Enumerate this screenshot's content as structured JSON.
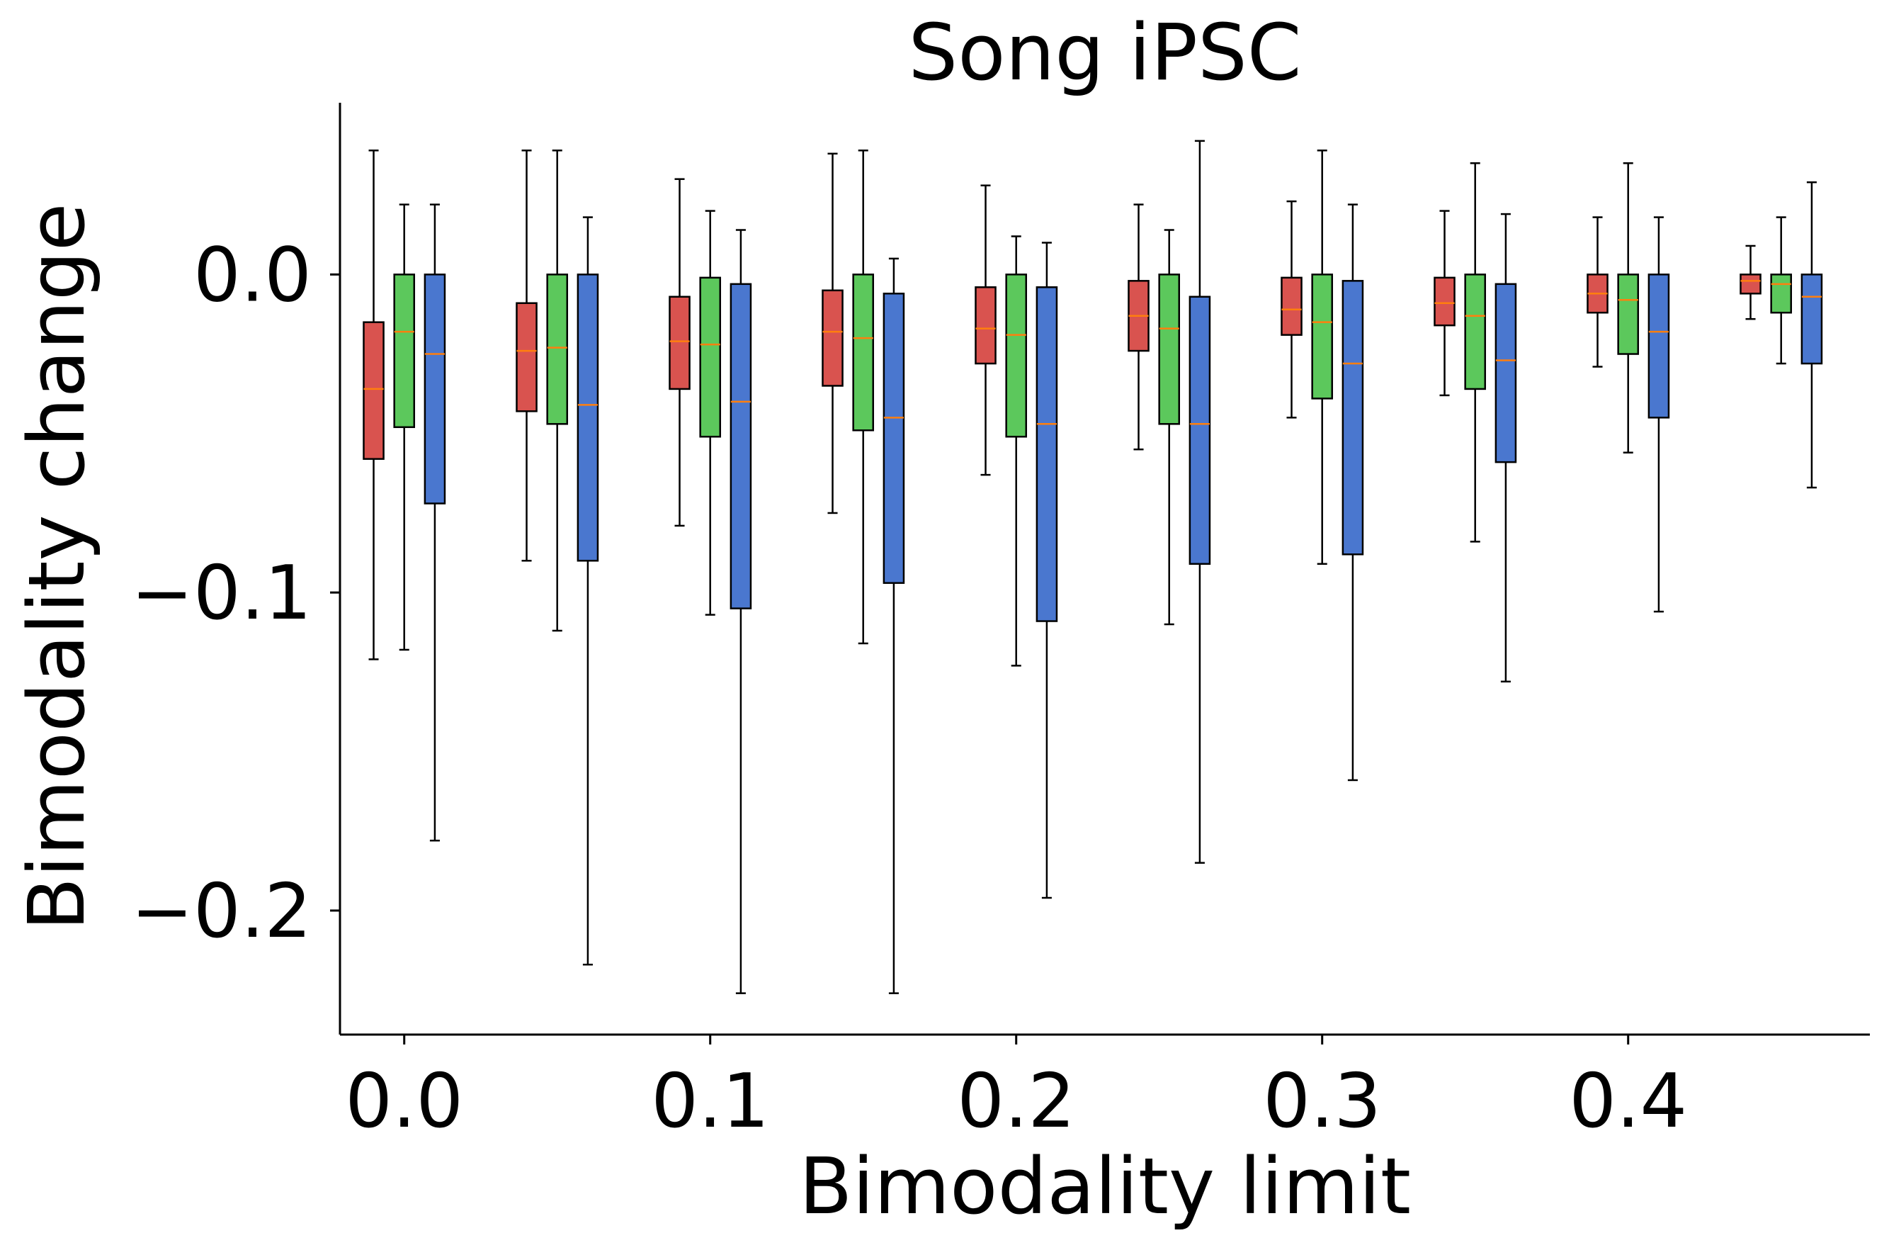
{
  "chart_data": {
    "type": "box",
    "title": "Song iPSC",
    "xlabel": "Bimodality limit",
    "ylabel": "Bimodality change",
    "xlim": [
      -0.021,
      0.479
    ],
    "ylim": [
      -0.239,
      0.054
    ],
    "xticks": [
      0.0,
      0.1,
      0.2,
      0.3,
      0.4
    ],
    "xtick_labels": [
      "0.0",
      "0.1",
      "0.2",
      "0.3",
      "0.4"
    ],
    "yticks": [
      0.0,
      -0.1,
      -0.2
    ],
    "ytick_labels": [
      "0.0",
      "−0.1",
      "−0.2"
    ],
    "grid": false,
    "median_color": "#ff7f0e",
    "series": [
      {
        "color": "#d9534f",
        "offset": -0.01,
        "boxes": [
          {
            "x": 0.0,
            "whislo": -0.121,
            "q1": -0.058,
            "med": -0.036,
            "q3": -0.015,
            "whishi": 0.039
          },
          {
            "x": 0.05,
            "whislo": -0.09,
            "q1": -0.043,
            "med": -0.024,
            "q3": -0.009,
            "whishi": 0.039
          },
          {
            "x": 0.1,
            "whislo": -0.079,
            "q1": -0.036,
            "med": -0.021,
            "q3": -0.007,
            "whishi": 0.03
          },
          {
            "x": 0.15,
            "whislo": -0.075,
            "q1": -0.035,
            "med": -0.018,
            "q3": -0.005,
            "whishi": 0.038
          },
          {
            "x": 0.2,
            "whislo": -0.063,
            "q1": -0.028,
            "med": -0.017,
            "q3": -0.004,
            "whishi": 0.028
          },
          {
            "x": 0.25,
            "whislo": -0.055,
            "q1": -0.024,
            "med": -0.013,
            "q3": -0.002,
            "whishi": 0.022
          },
          {
            "x": 0.3,
            "whislo": -0.045,
            "q1": -0.019,
            "med": -0.011,
            "q3": -0.001,
            "whishi": 0.023
          },
          {
            "x": 0.35,
            "whislo": -0.038,
            "q1": -0.016,
            "med": -0.009,
            "q3": -0.001,
            "whishi": 0.02
          },
          {
            "x": 0.4,
            "whislo": -0.029,
            "q1": -0.012,
            "med": -0.006,
            "q3": 0.0,
            "whishi": 0.018
          },
          {
            "x": 0.45,
            "whislo": -0.014,
            "q1": -0.006,
            "med": -0.002,
            "q3": 0.0,
            "whishi": 0.009
          }
        ]
      },
      {
        "color": "#5cc85c",
        "offset": 0.0,
        "boxes": [
          {
            "x": 0.0,
            "whislo": -0.118,
            "q1": -0.048,
            "med": -0.018,
            "q3": 0.0,
            "whishi": 0.022
          },
          {
            "x": 0.05,
            "whislo": -0.112,
            "q1": -0.047,
            "med": -0.023,
            "q3": 0.0,
            "whishi": 0.039
          },
          {
            "x": 0.1,
            "whislo": -0.107,
            "q1": -0.051,
            "med": -0.022,
            "q3": -0.001,
            "whishi": 0.02
          },
          {
            "x": 0.15,
            "whislo": -0.116,
            "q1": -0.049,
            "med": -0.02,
            "q3": 0.0,
            "whishi": 0.039
          },
          {
            "x": 0.2,
            "whislo": -0.123,
            "q1": -0.051,
            "med": -0.019,
            "q3": 0.0,
            "whishi": 0.012
          },
          {
            "x": 0.25,
            "whislo": -0.11,
            "q1": -0.047,
            "med": -0.017,
            "q3": 0.0,
            "whishi": 0.014
          },
          {
            "x": 0.3,
            "whislo": -0.091,
            "q1": -0.039,
            "med": -0.015,
            "q3": 0.0,
            "whishi": 0.039
          },
          {
            "x": 0.35,
            "whislo": -0.084,
            "q1": -0.036,
            "med": -0.013,
            "q3": 0.0,
            "whishi": 0.035
          },
          {
            "x": 0.4,
            "whislo": -0.056,
            "q1": -0.025,
            "med": -0.008,
            "q3": 0.0,
            "whishi": 0.035
          },
          {
            "x": 0.45,
            "whislo": -0.028,
            "q1": -0.012,
            "med": -0.003,
            "q3": 0.0,
            "whishi": 0.018
          }
        ]
      },
      {
        "color": "#4a77cf",
        "offset": 0.01,
        "boxes": [
          {
            "x": 0.0,
            "whislo": -0.178,
            "q1": -0.072,
            "med": -0.025,
            "q3": 0.0,
            "whishi": 0.022
          },
          {
            "x": 0.05,
            "whislo": -0.217,
            "q1": -0.09,
            "med": -0.041,
            "q3": 0.0,
            "whishi": 0.018
          },
          {
            "x": 0.1,
            "whislo": -0.226,
            "q1": -0.105,
            "med": -0.04,
            "q3": -0.003,
            "whishi": 0.014
          },
          {
            "x": 0.15,
            "whislo": -0.226,
            "q1": -0.097,
            "med": -0.045,
            "q3": -0.006,
            "whishi": 0.005
          },
          {
            "x": 0.2,
            "whislo": -0.196,
            "q1": -0.109,
            "med": -0.047,
            "q3": -0.004,
            "whishi": 0.01
          },
          {
            "x": 0.25,
            "whislo": -0.185,
            "q1": -0.091,
            "med": -0.047,
            "q3": -0.007,
            "whishi": 0.042
          },
          {
            "x": 0.3,
            "whislo": -0.159,
            "q1": -0.088,
            "med": -0.028,
            "q3": -0.002,
            "whishi": 0.022
          },
          {
            "x": 0.35,
            "whislo": -0.128,
            "q1": -0.059,
            "med": -0.027,
            "q3": -0.003,
            "whishi": 0.019
          },
          {
            "x": 0.4,
            "whislo": -0.106,
            "q1": -0.045,
            "med": -0.018,
            "q3": 0.0,
            "whishi": 0.018
          },
          {
            "x": 0.45,
            "whislo": -0.067,
            "q1": -0.028,
            "med": -0.007,
            "q3": 0.0,
            "whishi": 0.029
          }
        ]
      }
    ]
  }
}
